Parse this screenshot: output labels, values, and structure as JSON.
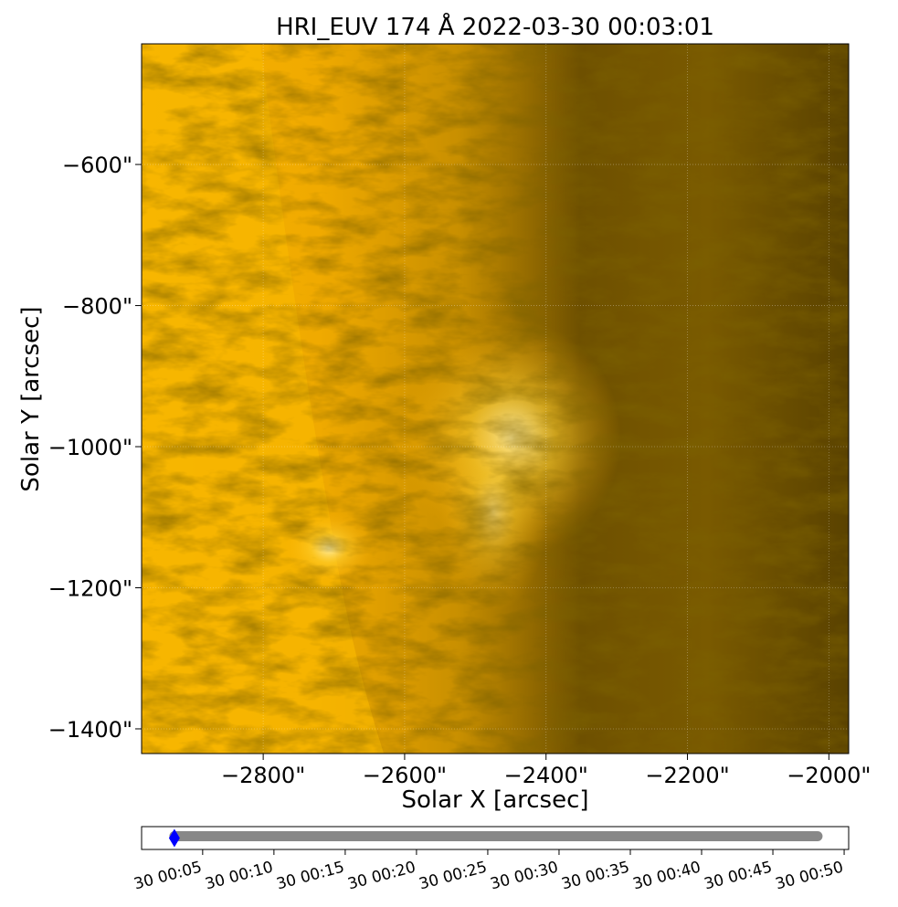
{
  "chart_data": [
    {
      "type": "image",
      "title": "HRI_EUV 174 Å 2022-03-30 00:03:01",
      "xlabel": "Solar X [arcsec]",
      "ylabel": "Solar Y [arcsec]",
      "xlim": [
        -2972,
        -1972
      ],
      "ylim": [
        -1435,
        -429
      ],
      "xticks": [
        {
          "value": -2800,
          "label": "−2800\""
        },
        {
          "value": -2600,
          "label": "−2600\""
        },
        {
          "value": -2400,
          "label": "−2400\""
        },
        {
          "value": -2200,
          "label": "−2200\""
        },
        {
          "value": -2000,
          "label": "−2000\""
        }
      ],
      "yticks": [
        {
          "value": -600,
          "label": "−600\""
        },
        {
          "value": -800,
          "label": "−800\""
        },
        {
          "value": -1000,
          "label": "−1000\""
        },
        {
          "value": -1200,
          "label": "−1200\""
        },
        {
          "value": -1400,
          "label": "−1400\""
        }
      ],
      "grid": true
    },
    {
      "type": "slider",
      "xlim": [
        "00:00:43",
        "00:50:19"
      ],
      "xticks": [
        {
          "value": "00:05",
          "label": "30 00:05"
        },
        {
          "value": "00:10",
          "label": "30 00:10"
        },
        {
          "value": "00:15",
          "label": "30 00:15"
        },
        {
          "value": "00:20",
          "label": "30 00:20"
        },
        {
          "value": "00:25",
          "label": "30 00:25"
        },
        {
          "value": "00:30",
          "label": "30 00:30"
        },
        {
          "value": "00:35",
          "label": "30 00:35"
        },
        {
          "value": "00:40",
          "label": "30 00:40"
        },
        {
          "value": "00:45",
          "label": "30 00:45"
        },
        {
          "value": "00:50",
          "label": "30 00:50"
        }
      ],
      "frames": {
        "x": [
          "00:03:01",
          "00:48:08"
        ],
        "color": "#888888"
      },
      "current": {
        "x": "00:03:01",
        "color": "#0000ff"
      }
    }
  ]
}
